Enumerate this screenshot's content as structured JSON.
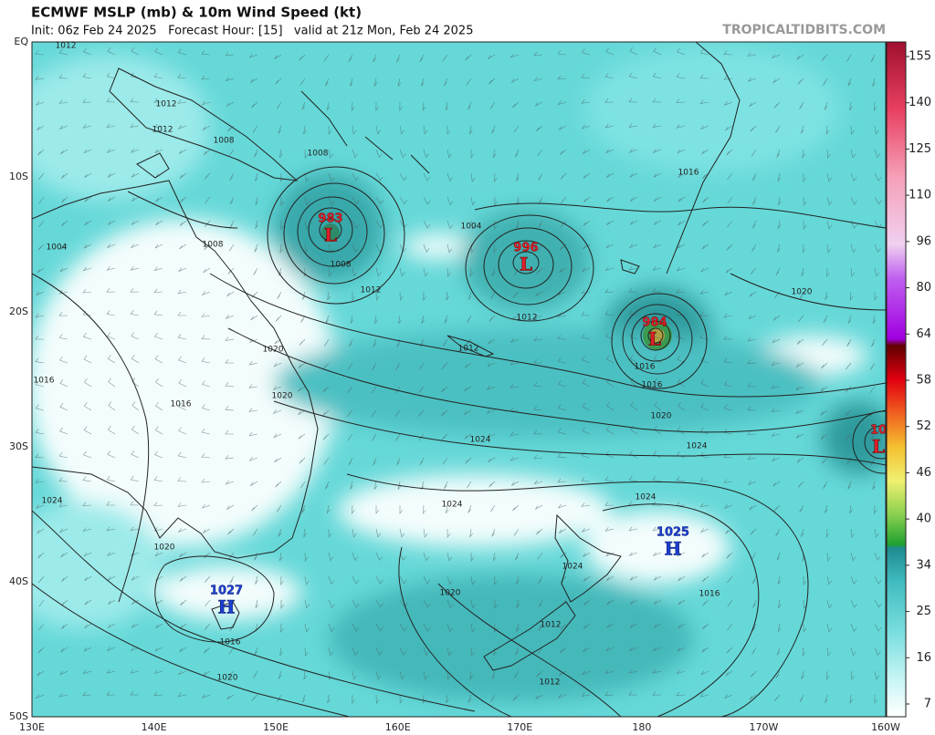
{
  "header": {
    "title": "ECMWF MSLP (mb) & 10m Wind Speed (kt)",
    "subtitle": "Init: 06z Feb 24 2025   Forecast Hour: [15]   valid at 21z Mon, Feb 24 2025",
    "watermark": "TROPICALTIDBITS.COM"
  },
  "map": {
    "latitude_labels": [
      "EQ",
      "10S",
      "20S",
      "30S",
      "40S",
      "50S"
    ],
    "longitude_labels": [
      "130E",
      "140E",
      "150E",
      "160E",
      "170E",
      "180",
      "170W",
      "160W"
    ],
    "pressure_centers": [
      {
        "type": "L",
        "value": "983"
      },
      {
        "type": "L",
        "value": "996"
      },
      {
        "type": "L",
        "value": "984"
      },
      {
        "type": "L",
        "value": "10"
      },
      {
        "type": "H",
        "value": "1025"
      },
      {
        "type": "H",
        "value": "1027"
      }
    ],
    "isobar_labels": [
      "1012",
      "1012",
      "1012",
      "1008",
      "1004",
      "1008",
      "1008",
      "1008",
      "1012",
      "1004",
      "1012",
      "1012",
      "1016",
      "1016",
      "1016",
      "1020",
      "1020",
      "1016",
      "1016",
      "1020",
      "1020",
      "1024",
      "1024",
      "1024",
      "1024",
      "1024",
      "1020",
      "1024",
      "1020",
      "1016",
      "1012",
      "1016",
      "1020",
      "1012"
    ]
  },
  "colorbar": {
    "ticks": [
      7,
      16,
      25,
      34,
      40,
      46,
      52,
      58,
      64,
      80,
      96,
      110,
      125,
      140,
      155
    ]
  }
}
